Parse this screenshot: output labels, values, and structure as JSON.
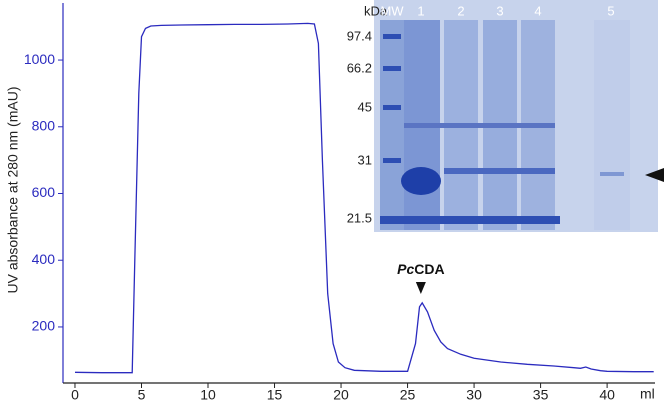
{
  "chart_data": {
    "type": "line",
    "y_label": "UV absorbance at 280 nm (mAU)",
    "x_label": "ml",
    "annotation_italic": "Pc",
    "annotation": "CDA",
    "annotation_x": 26,
    "x": [
      0,
      2,
      4,
      4.3,
      4.5,
      4.8,
      5,
      5.3,
      5.7,
      6.5,
      8,
      10,
      12,
      14,
      16,
      17.5,
      18,
      18.3,
      18.6,
      19,
      19.4,
      19.8,
      20.3,
      21,
      23,
      25,
      25.6,
      25.9,
      26.1,
      26.5,
      27,
      27.5,
      28,
      29,
      30,
      32,
      34,
      36,
      37.5,
      38,
      38.4,
      38.8,
      39.5,
      40,
      42,
      43.5
    ],
    "series": [
      {
        "name": "UV 280 nm",
        "color": "#2b2bbf",
        "values": [
          64,
          63,
          63,
          63,
          400,
          900,
          1070,
          1095,
          1102,
          1104,
          1105,
          1106,
          1107,
          1107,
          1108,
          1110,
          1108,
          1050,
          700,
          300,
          150,
          95,
          78,
          70,
          67,
          67,
          150,
          260,
          272,
          245,
          190,
          155,
          135,
          118,
          106,
          95,
          88,
          83,
          78,
          76,
          80,
          74,
          69,
          67,
          66,
          66
        ]
      }
    ],
    "xlim": [
      -0.9,
      43.6
    ],
    "xticks": [
      0,
      5,
      10,
      15,
      20,
      25,
      30,
      35,
      40
    ],
    "ylim": [
      32,
      1171
    ],
    "yticks": [
      200,
      400,
      600,
      800,
      1000
    ]
  },
  "gel": {
    "header": [
      "kDa",
      "MW",
      "1",
      "2",
      "3",
      "4",
      "5"
    ],
    "markers": [
      "97.4",
      "66.2",
      "45",
      "31",
      "21.5"
    ]
  }
}
